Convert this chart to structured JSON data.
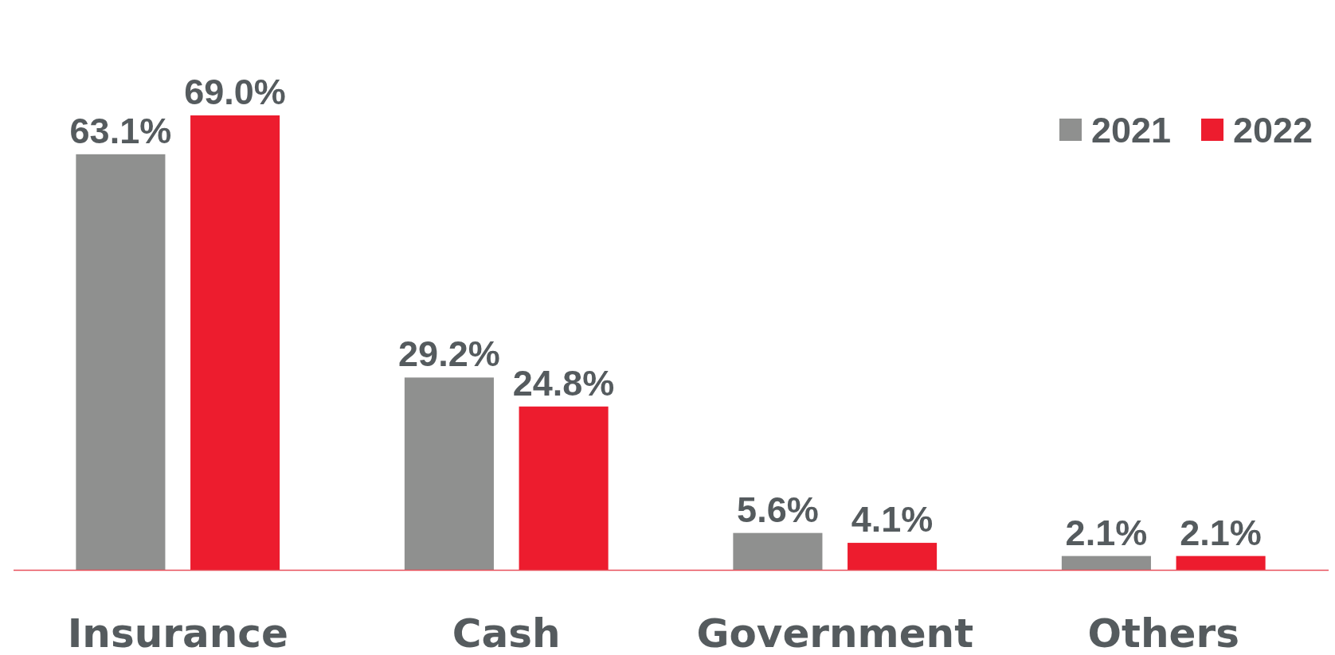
{
  "chart_data": {
    "type": "bar",
    "categories": [
      "Insurance",
      "Cash",
      "Government",
      "Others"
    ],
    "series": [
      {
        "name": "2021",
        "color": "#8f908f",
        "values": [
          63.1,
          29.2,
          5.6,
          2.1
        ],
        "value_labels": [
          "63.1%",
          "29.2%",
          "5.6%",
          "2.1%"
        ]
      },
      {
        "name": "2022",
        "color": "#ed1c2e",
        "values": [
          69.0,
          24.8,
          4.1,
          2.1
        ],
        "value_labels": [
          "69.0%",
          "24.8%",
          "4.1%",
          "2.1%"
        ]
      }
    ],
    "legend": "top right"
  }
}
